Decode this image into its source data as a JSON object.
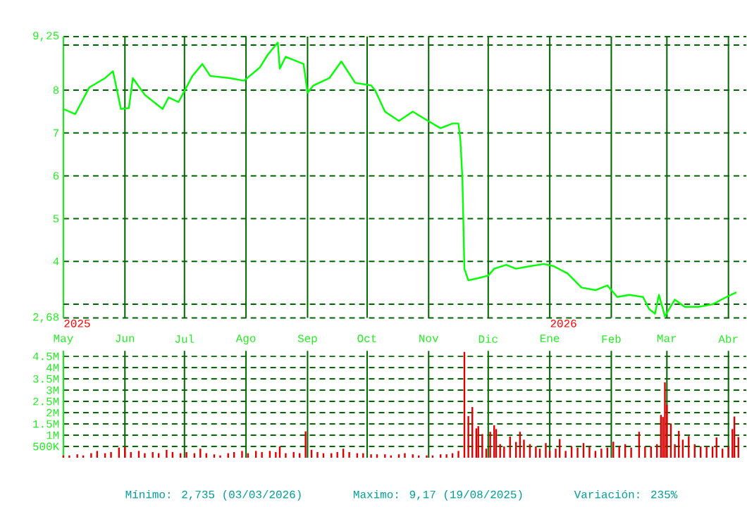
{
  "chart_data": [
    {
      "type": "line",
      "xlim": [
        "2025-05-01",
        "2026-04-10"
      ],
      "ylim": [
        2.68,
        9.25
      ],
      "xticks": [
        {
          "value": "2025-05-01",
          "label": "May"
        },
        {
          "value": "2025-06-01",
          "label": "Jun"
        },
        {
          "value": "2025-07-01",
          "label": "Jul"
        },
        {
          "value": "2025-08-01",
          "label": "Ago"
        },
        {
          "value": "2025-09-01",
          "label": "Sep"
        },
        {
          "value": "2025-10-01",
          "label": "Oct"
        },
        {
          "value": "2025-11-01",
          "label": "Nov"
        },
        {
          "value": "2025-12-01",
          "label": "Dic"
        },
        {
          "value": "2026-01-01",
          "label": "Ene"
        },
        {
          "value": "2026-02-01",
          "label": "Feb"
        },
        {
          "value": "2026-03-01",
          "label": "Mar"
        },
        {
          "value": "2026-04-01",
          "label": "Abr"
        }
      ],
      "yticks": [
        {
          "value": 2.68,
          "label": "2,68"
        },
        4,
        5,
        6,
        7,
        8,
        {
          "value": 9.25,
          "label": "9,25"
        }
      ],
      "grid": true,
      "ref_lines": [
        {
          "axis": "y",
          "value": 9.05,
          "line_style": "dashed"
        },
        {
          "axis": "y",
          "value": 3.0,
          "line_style": "dashed"
        }
      ],
      "annotations": [
        "2025",
        "2026"
      ],
      "series": [
        {
          "color": "#00ff00",
          "x": [
            "2025-05-01",
            "2025-05-07",
            "2025-05-14",
            "2025-05-22",
            "2025-05-26",
            "2025-05-30",
            "2025-06-03",
            "2025-06-05",
            "2025-06-11",
            "2025-06-20",
            "2025-06-23",
            "2025-06-28",
            "2025-07-05",
            "2025-07-10",
            "2025-07-14",
            "2025-07-24",
            "2025-07-31",
            "2025-08-08",
            "2025-08-12",
            "2025-08-17",
            "2025-08-18",
            "2025-08-21",
            "2025-08-30",
            "2025-09-01",
            "2025-09-04",
            "2025-09-12",
            "2025-09-18",
            "2025-09-25",
            "2025-10-03",
            "2025-10-05",
            "2025-10-10",
            "2025-10-17",
            "2025-10-24",
            "2025-10-31",
            "2025-11-07",
            "2025-11-13",
            "2025-11-16",
            "2025-11-17",
            "2025-11-18",
            "2025-11-19",
            "2025-11-21",
            "2025-11-26",
            "2025-12-01",
            "2025-12-04",
            "2025-12-10",
            "2025-12-15",
            "2025-12-22",
            "2025-12-29",
            "2026-01-03",
            "2026-01-10",
            "2026-01-17",
            "2026-01-24",
            "2026-01-30",
            "2026-02-04",
            "2026-02-10",
            "2026-02-17",
            "2026-02-20",
            "2026-02-23",
            "2026-02-25",
            "2026-02-28",
            "2026-03-05",
            "2026-03-10",
            "2026-03-17",
            "2026-03-24",
            "2026-03-31",
            "2026-04-05"
          ],
          "values": [
            7.56,
            7.44,
            8.06,
            8.28,
            8.44,
            7.56,
            7.58,
            8.28,
            7.89,
            7.56,
            7.83,
            7.72,
            8.33,
            8.61,
            8.33,
            8.28,
            8.22,
            8.53,
            8.83,
            9.11,
            8.5,
            8.78,
            8.61,
            7.94,
            8.11,
            8.28,
            8.67,
            8.17,
            8.11,
            8.0,
            7.5,
            7.28,
            7.5,
            7.3,
            7.11,
            7.22,
            7.22,
            6.83,
            5.94,
            3.83,
            3.56,
            3.61,
            3.67,
            3.83,
            3.92,
            3.83,
            3.89,
            3.94,
            3.89,
            3.72,
            3.39,
            3.33,
            3.44,
            3.17,
            3.22,
            3.17,
            2.89,
            2.78,
            3.22,
            2.72,
            3.11,
            2.94,
            2.94,
            3.0,
            3.17,
            3.28
          ]
        }
      ]
    },
    {
      "type": "bar",
      "xlim": [
        "2025-05-01",
        "2026-04-10"
      ],
      "ylim": [
        0,
        4750000
      ],
      "xticks": [
        {
          "value": "2025-05-01",
          "label": null
        },
        {
          "value": "2025-06-01",
          "label": null
        },
        {
          "value": "2025-07-01",
          "label": null
        },
        {
          "value": "2025-08-01",
          "label": null
        },
        {
          "value": "2025-09-01",
          "label": null
        },
        {
          "value": "2025-10-01",
          "label": null
        },
        {
          "value": "2025-11-01",
          "label": null
        },
        {
          "value": "2025-12-01",
          "label": null
        },
        {
          "value": "2026-01-01",
          "label": null
        },
        {
          "value": "2026-02-01",
          "label": null
        },
        {
          "value": "2026-03-01",
          "label": null
        },
        {
          "value": "2026-04-01",
          "label": null
        }
      ],
      "yticks": [
        {
          "value": 500000,
          "label": "500K"
        },
        {
          "value": 1000000,
          "label": "1M"
        },
        {
          "value": 1500000,
          "label": "1.5M"
        },
        {
          "value": 2000000,
          "label": "2M"
        },
        {
          "value": 2500000,
          "label": "2.5M"
        },
        {
          "value": 3000000,
          "label": "3M"
        },
        {
          "value": 3500000,
          "label": "3.5M"
        },
        {
          "value": 4000000,
          "label": "4M"
        },
        {
          "value": 4500000,
          "label": "4.5M"
        }
      ],
      "grid": true,
      "tick_labels": "y",
      "annotations": [
        "Mínimo: 2,735 (03/03/2026)",
        "Maximo: 9,17 (19/08/2025)",
        "Variación: 235%"
      ],
      "series": [
        {
          "color": "#dd0000",
          "x": [
            "2025-05-01",
            "2025-05-04",
            "2025-05-08",
            "2025-05-11",
            "2025-05-15",
            "2025-05-18",
            "2025-05-22",
            "2025-05-25",
            "2025-05-29",
            "2025-06-01",
            "2025-06-04",
            "2025-06-08",
            "2025-06-11",
            "2025-06-15",
            "2025-06-18",
            "2025-06-22",
            "2025-06-25",
            "2025-06-29",
            "2025-07-02",
            "2025-07-06",
            "2025-07-09",
            "2025-07-12",
            "2025-07-16",
            "2025-07-19",
            "2025-07-23",
            "2025-07-26",
            "2025-07-30",
            "2025-08-02",
            "2025-08-06",
            "2025-08-09",
            "2025-08-13",
            "2025-08-16",
            "2025-08-18",
            "2025-08-21",
            "2025-08-25",
            "2025-08-28",
            "2025-08-31",
            "2025-09-03",
            "2025-09-06",
            "2025-09-09",
            "2025-09-13",
            "2025-09-16",
            "2025-09-19",
            "2025-09-22",
            "2025-09-26",
            "2025-09-29",
            "2025-10-03",
            "2025-10-06",
            "2025-10-10",
            "2025-10-13",
            "2025-10-17",
            "2025-10-20",
            "2025-10-24",
            "2025-10-27",
            "2025-10-31",
            "2025-11-03",
            "2025-11-07",
            "2025-11-10",
            "2025-11-13",
            "2025-11-16",
            "2025-11-19",
            "2025-11-21",
            "2025-11-23",
            "2025-11-25",
            "2025-11-26",
            "2025-11-28",
            "2025-11-30",
            "2025-12-02",
            "2025-12-04",
            "2025-12-05",
            "2025-12-07",
            "2025-12-09",
            "2025-12-12",
            "2025-12-15",
            "2025-12-17",
            "2025-12-19",
            "2025-12-22",
            "2025-12-25",
            "2025-12-27",
            "2025-12-30",
            "2026-01-01",
            "2026-01-04",
            "2026-01-06",
            "2026-01-09",
            "2026-01-12",
            "2026-01-15",
            "2026-01-18",
            "2026-01-21",
            "2026-01-24",
            "2026-01-27",
            "2026-01-30",
            "2026-02-02",
            "2026-02-05",
            "2026-02-08",
            "2026-02-11",
            "2026-02-15",
            "2026-02-18",
            "2026-02-21",
            "2026-02-24",
            "2026-02-26",
            "2026-02-27",
            "2026-02-28",
            "2026-03-01",
            "2026-03-03",
            "2026-03-05",
            "2026-03-07",
            "2026-03-09",
            "2026-03-12",
            "2026-03-15",
            "2026-03-18",
            "2026-03-21",
            "2026-03-24",
            "2026-03-26",
            "2026-03-29",
            "2026-04-01",
            "2026-04-03",
            "2026-04-04",
            "2026-04-06"
          ],
          "values": [
            100000,
            100000,
            150000,
            100000,
            200000,
            300000,
            200000,
            250000,
            450000,
            500000,
            250000,
            300000,
            200000,
            250000,
            200000,
            350000,
            250000,
            200000,
            250000,
            200000,
            400000,
            200000,
            150000,
            100000,
            200000,
            250000,
            300000,
            200000,
            300000,
            250000,
            300000,
            250000,
            500000,
            200000,
            250000,
            200000,
            1170000,
            350000,
            250000,
            200000,
            200000,
            250000,
            400000,
            250000,
            200000,
            200000,
            150000,
            150000,
            150000,
            100000,
            150000,
            200000,
            150000,
            100000,
            100000,
            100000,
            150000,
            150000,
            200000,
            300000,
            4700000,
            1850000,
            2250000,
            1300000,
            1400000,
            1050000,
            400000,
            1150000,
            1440000,
            1270000,
            600000,
            500000,
            940000,
            700000,
            1150000,
            800000,
            600000,
            500000,
            400000,
            650000,
            300000,
            400000,
            830000,
            300000,
            500000,
            450000,
            650000,
            500000,
            300000,
            400000,
            450000,
            710000,
            500000,
            600000,
            450000,
            1150000,
            500000,
            500000,
            600000,
            1900000,
            1810000,
            3350000,
            2350000,
            1520000,
            600000,
            1190000,
            800000,
            960000,
            600000,
            500000,
            500000,
            500000,
            900000,
            400000,
            500000,
            1270000,
            1830000,
            920000
          ]
        }
      ]
    }
  ]
}
